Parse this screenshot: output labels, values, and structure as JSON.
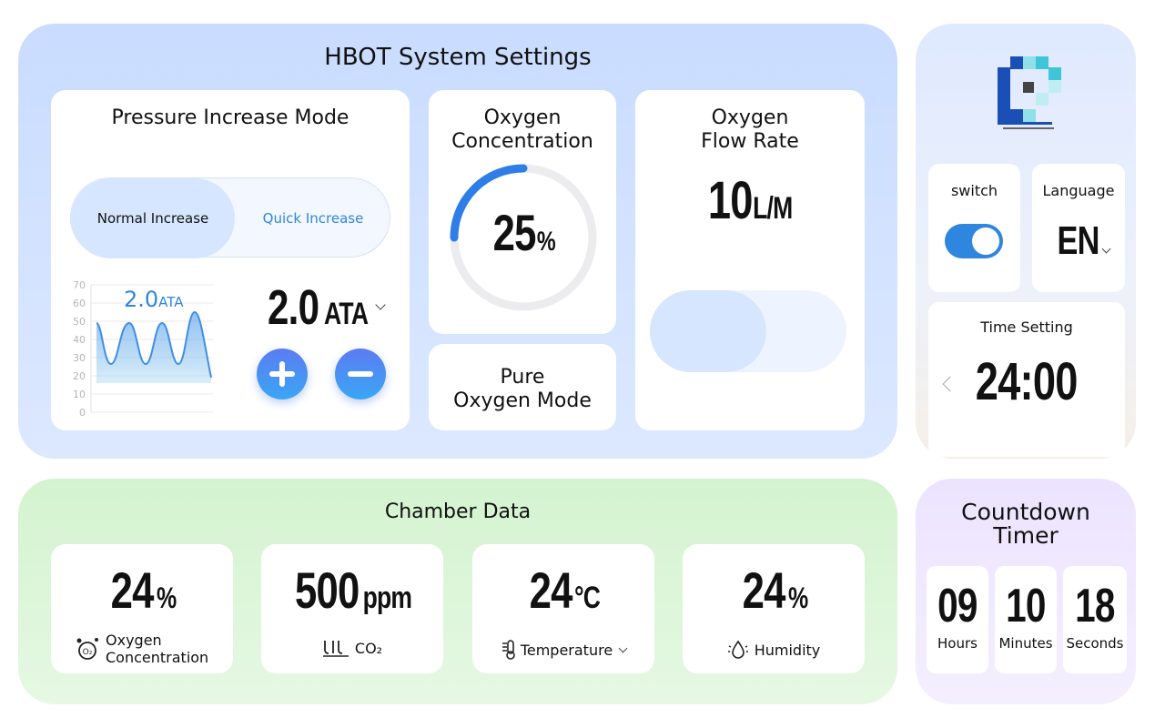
{
  "settings": {
    "title": "HBOT System Settings",
    "pressure": {
      "title": "Pressure Increase Mode",
      "mode_normal": "Normal Increase",
      "mode_quick": "Quick Increase",
      "mini_value": "2.0",
      "mini_unit": "ATA",
      "value": "2.0",
      "unit": "ATA",
      "y_ticks": [
        "70",
        "60",
        "50",
        "40",
        "30",
        "20",
        "10",
        "0"
      ]
    },
    "oxygen_concentration": {
      "title_line1": "Oxygen",
      "title_line2": "Concentration",
      "value": "25",
      "unit": "%",
      "progress": 0.25
    },
    "pure_oxygen": {
      "title_line1": "Pure",
      "title_line2": "Oxygen Mode"
    },
    "flow_rate": {
      "title_line1": "Oxygen",
      "title_line2": "Flow Rate",
      "value": "10",
      "unit": "L/M"
    }
  },
  "side": {
    "switch_label": "switch",
    "switch_on": true,
    "language_label": "Language",
    "language_value": "EN",
    "time_label": "Time Setting",
    "time_value": "24:00"
  },
  "chamber": {
    "title": "Chamber Data",
    "items": [
      {
        "value": "24",
        "unit": "%",
        "label": "Oxygen Concentration",
        "icon": "o2-icon"
      },
      {
        "value": "500",
        "unit": "ppm",
        "label": "CO₂",
        "icon": "co2-icon"
      },
      {
        "value": "24",
        "unit": "°C",
        "label": "Temperature",
        "icon": "thermometer-icon"
      },
      {
        "value": "24",
        "unit": "%",
        "label": "Humidity",
        "icon": "humidity-icon"
      }
    ]
  },
  "countdown": {
    "title_line1": "Countdown",
    "title_line2": "Timer",
    "hours": "09",
    "hours_label": "Hours",
    "minutes": "10",
    "minutes_label": "Minutes",
    "seconds": "18",
    "seconds_label": "Seconds"
  },
  "colors": {
    "accent": "#2f86df",
    "arc": "#2f7de6",
    "toggle": "#2f86df"
  }
}
